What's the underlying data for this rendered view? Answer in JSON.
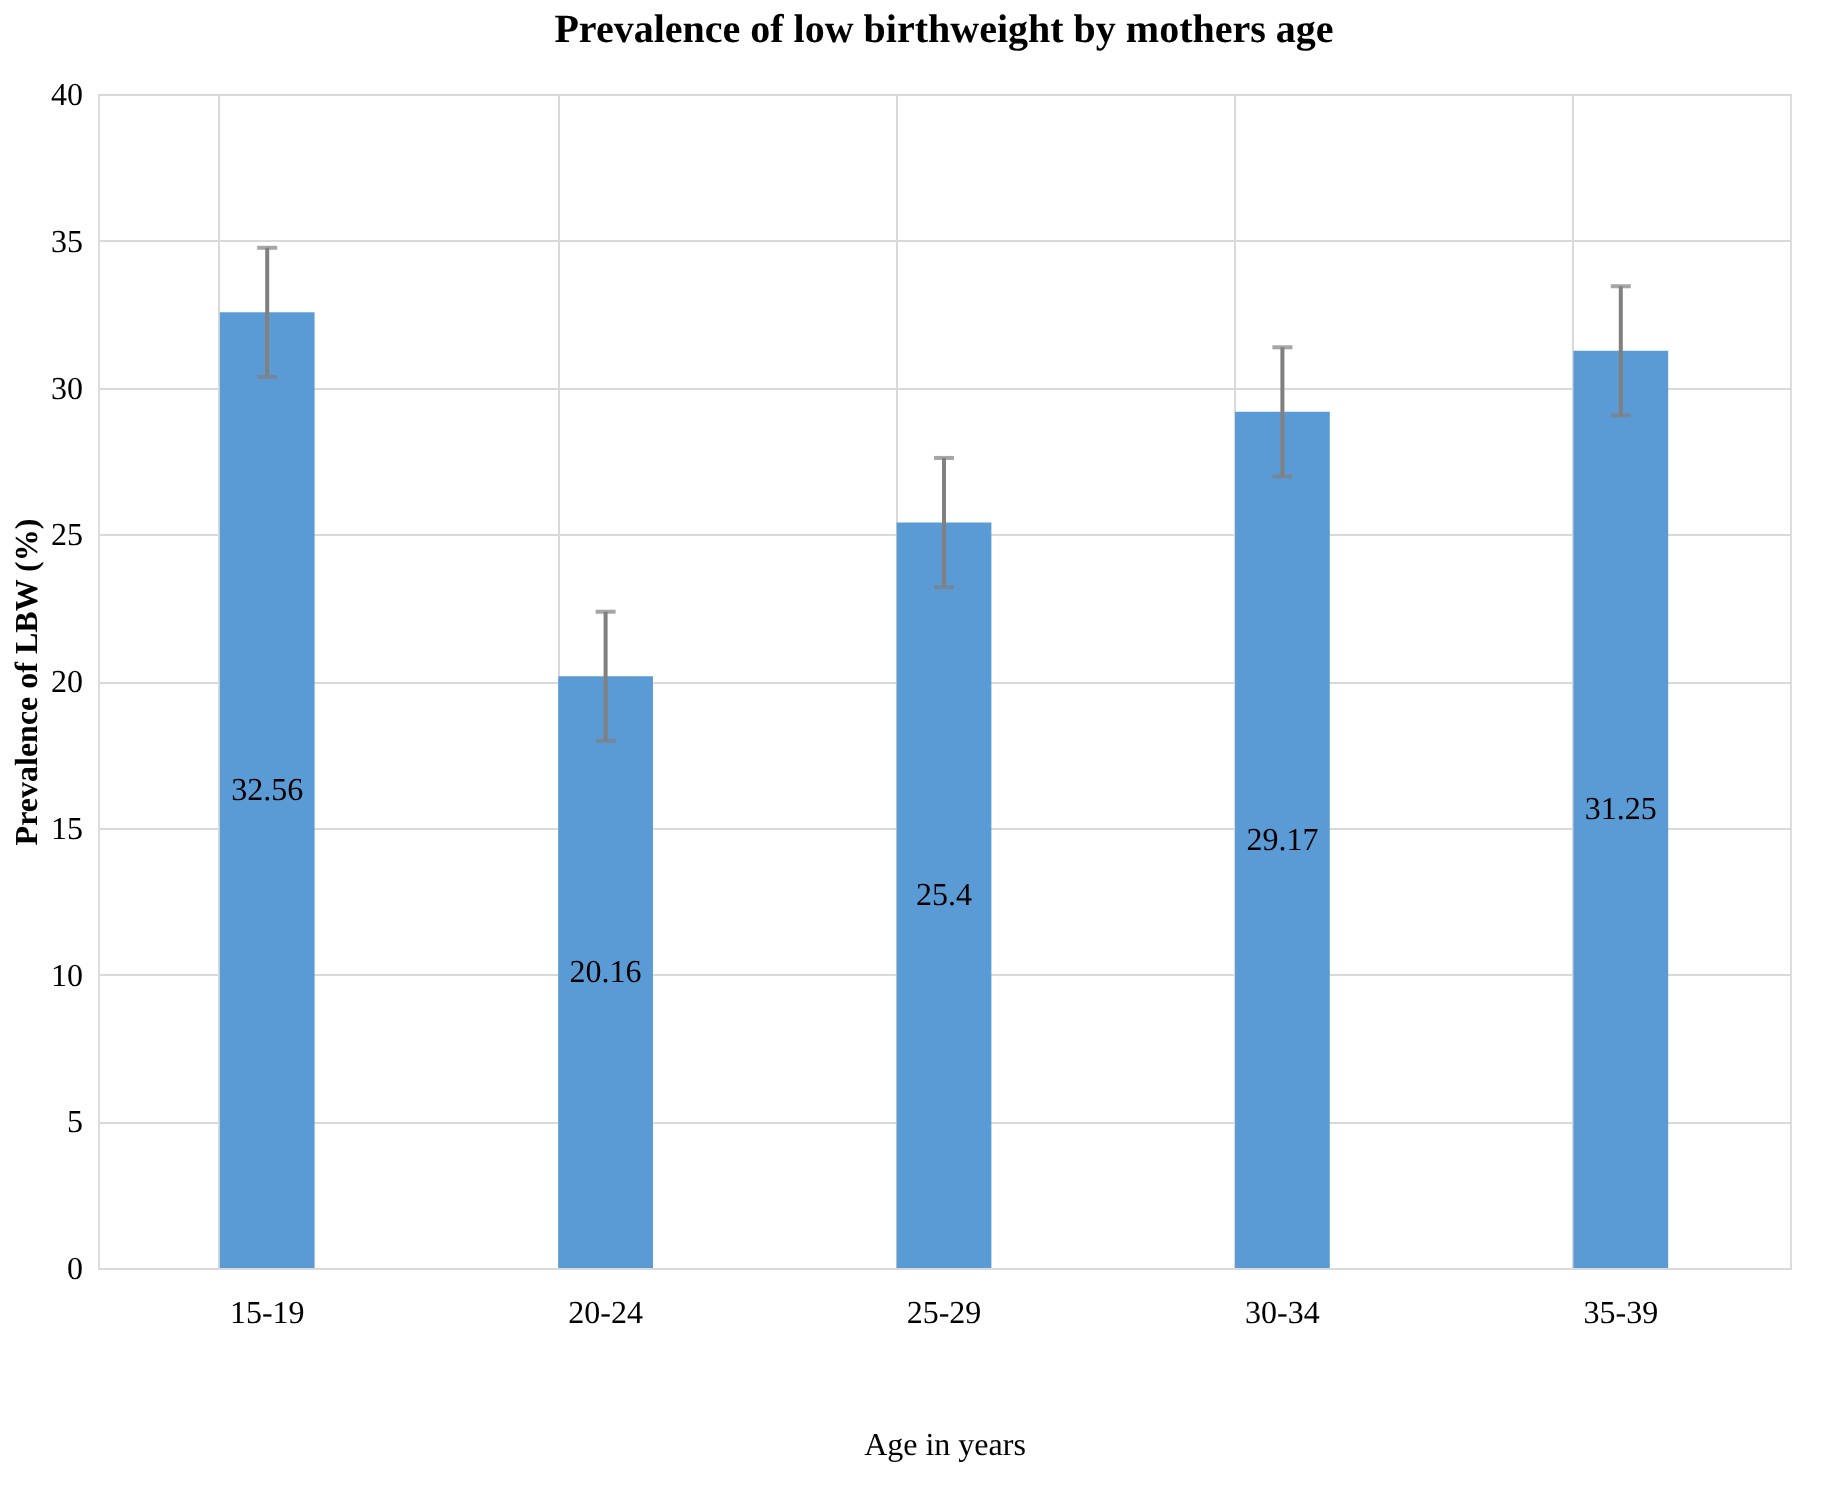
{
  "chart_data": {
    "type": "bar",
    "title": "Prevalence of low birthweight by mothers age",
    "xlabel": "Age in years",
    "ylabel": "Prevalence of LBW (%)",
    "categories": [
      "15-19",
      "20-24",
      "25-29",
      "30-34",
      "35-39"
    ],
    "values": [
      32.56,
      20.16,
      25.4,
      29.17,
      31.25
    ],
    "errors": [
      2.2,
      2.2,
      2.2,
      2.2,
      2.2
    ],
    "color": "#5b9bd5",
    "ylim": [
      0,
      40
    ],
    "yticks": [
      0,
      5,
      10,
      15,
      20,
      25,
      30,
      35,
      40
    ],
    "grid": true,
    "data_labels": true
  }
}
